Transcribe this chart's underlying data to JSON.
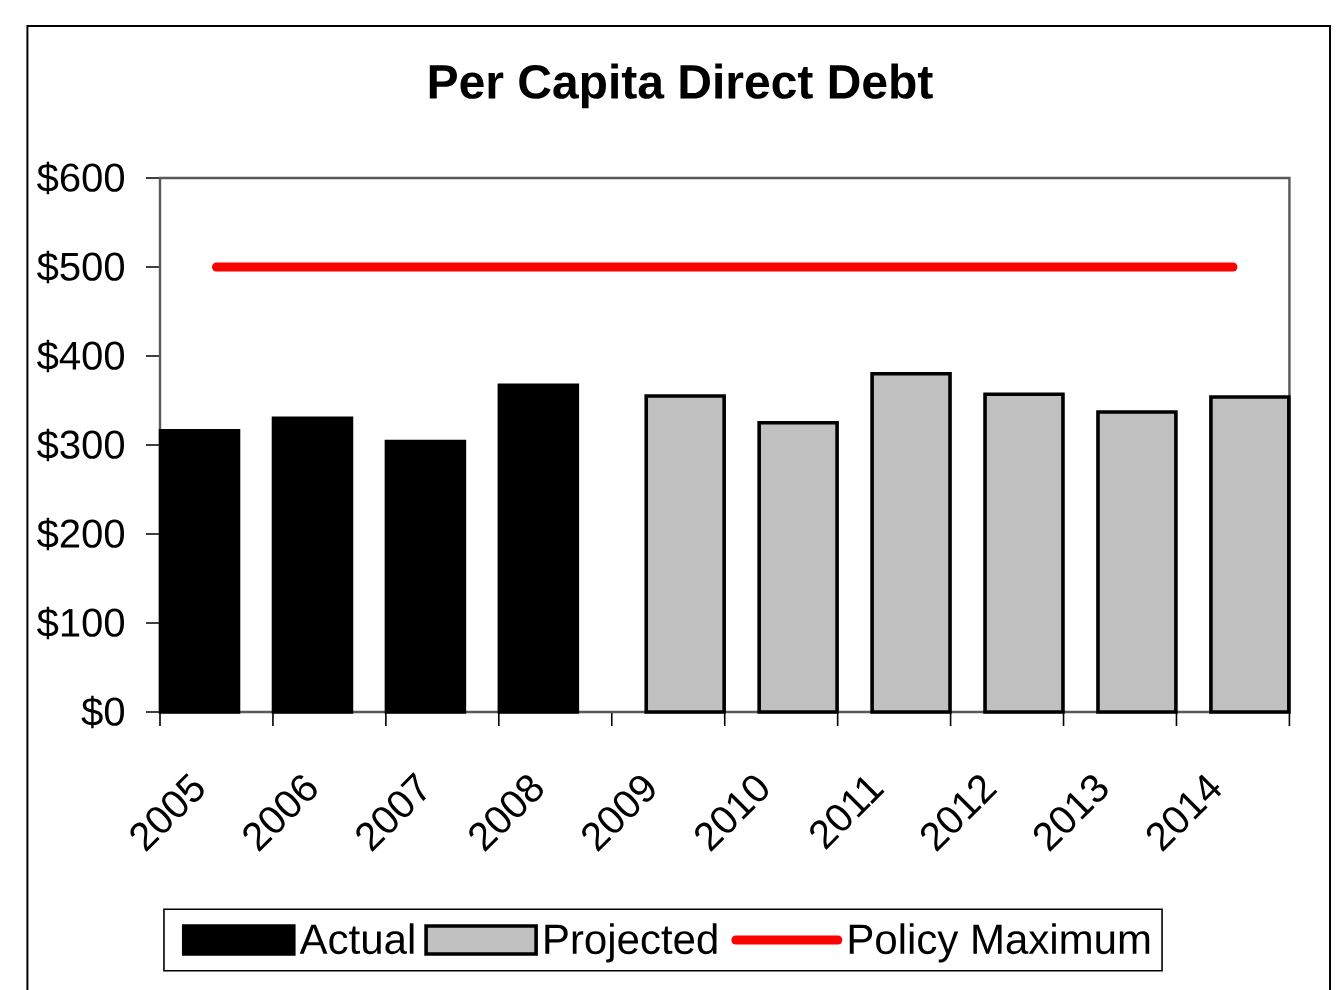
{
  "chart_data": {
    "type": "bar",
    "title": "Per Capita Direct Debt",
    "categories": [
      "2005",
      "2006",
      "2007",
      "2008",
      "2009",
      "2010",
      "2011",
      "2012",
      "2013",
      "2014"
    ],
    "series": [
      {
        "name": "Actual",
        "color": "#000000",
        "values": [
          316,
          330,
          304,
          367,
          null,
          null,
          null,
          null,
          null,
          null
        ]
      },
      {
        "name": "Projected",
        "color": "#c0c0c0",
        "values": [
          null,
          null,
          null,
          null,
          355,
          325,
          380,
          357,
          337,
          354
        ]
      },
      {
        "name": "Policy Maximum",
        "type": "line",
        "color": "#ff0000",
        "values": [
          500,
          500,
          500,
          500,
          500,
          500,
          500,
          500,
          500,
          500
        ]
      }
    ],
    "ylim": [
      0,
      600
    ],
    "yticks": [
      {
        "value": 0,
        "label": "$0"
      },
      {
        "value": 100,
        "label": "$100"
      },
      {
        "value": 200,
        "label": "$200"
      },
      {
        "value": 300,
        "label": "$300"
      },
      {
        "value": 400,
        "label": "$400"
      },
      {
        "value": 500,
        "label": "$500"
      },
      {
        "value": 600,
        "label": "$600"
      }
    ],
    "legend": "bottom"
  }
}
